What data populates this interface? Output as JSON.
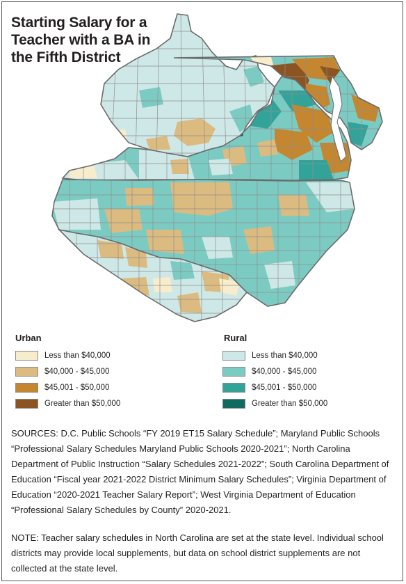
{
  "title_lines": [
    "Starting Salary for a",
    "Teacher with a BA in",
    "the Fifth District"
  ],
  "legend": {
    "urban": {
      "heading": "Urban",
      "items": [
        {
          "label": "Less than $40,000",
          "color": "#f7eccb"
        },
        {
          "label": "$40,000 - $45,000",
          "color": "#dbbb80"
        },
        {
          "label": "$45,001 - $50,000",
          "color": "#c4862f"
        },
        {
          "label": "Greater than $50,000",
          "color": "#8c5422"
        }
      ]
    },
    "rural": {
      "heading": "Rural",
      "items": [
        {
          "label": "Less than $40,000",
          "color": "#cde8e6"
        },
        {
          "label": "$40,000 - $45,000",
          "color": "#7ccbc3"
        },
        {
          "label": "$45,001 - $50,000",
          "color": "#33a39a"
        },
        {
          "label": "Greater than $50,000",
          "color": "#0f6a60"
        }
      ]
    }
  },
  "sources": "SOURCES: D.C. Public Schools “FY 2019 ET15 Salary Schedule”; Maryland Public Schools “Professional Salary Schedules Maryland Public Schools 2020-2021”; North Carolina Department of Public Instruction “Salary Schedules 2021-2022”; South Carolina Department of Education “Fiscal year 2021-2022 District Minimum Salary Schedules”; Virginia Department of Education “2020-2021 Teacher Salary Report”; West Virginia Department of Education “Professional Salary Schedules by County” 2020-2021.",
  "note": "NOTE: Teacher salary schedules in North Carolina are set at the state level. Individual school districts may provide local supplements, but data on school district supplements are not collected at the state level."
}
